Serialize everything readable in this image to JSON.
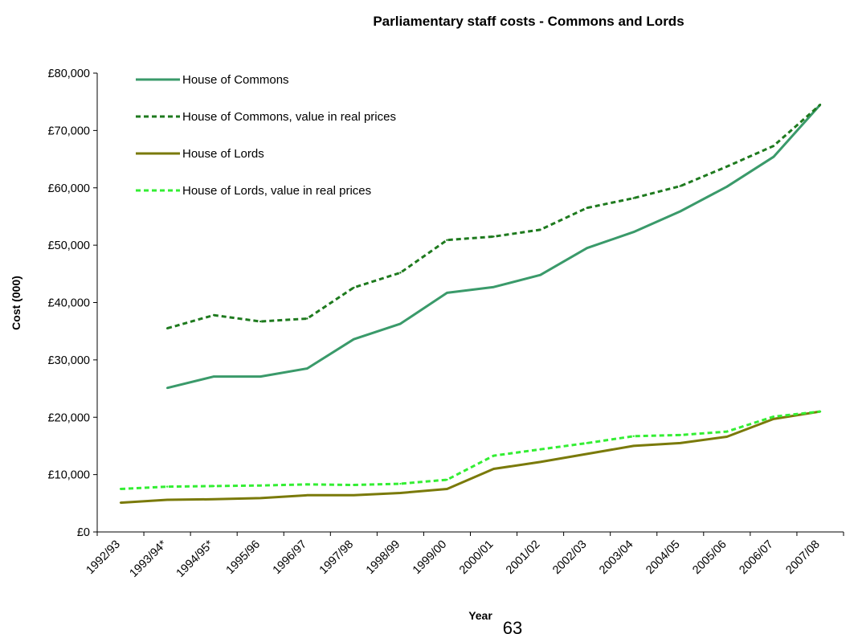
{
  "page_number": "63",
  "chart_data": {
    "type": "line",
    "title": "Parliamentary staff costs - Commons and Lords",
    "xlabel": "Year",
    "ylabel": "Cost (000)",
    "ylim": [
      0,
      80000
    ],
    "ytick_step": 10000,
    "ytick_labels": [
      "£0",
      "£10,000",
      "£20,000",
      "£30,000",
      "£40,000",
      "£50,000",
      "£60,000",
      "£70,000",
      "£80,000"
    ],
    "grid": false,
    "legend_position": "top-left, inside plot",
    "categories": [
      "1992/93",
      "1993/94*",
      "1994/95*",
      "1995/96",
      "1996/97",
      "1997/98",
      "1998/99",
      "1999/00",
      "2000/01",
      "2001/02",
      "2002/03",
      "2003/04",
      "2004/05",
      "2005/06",
      "2006/07",
      "2007/08"
    ],
    "series": [
      {
        "name": "House of Commons",
        "color": "#3a9a6a",
        "style": "solid",
        "values": [
          null,
          25100,
          27100,
          27100,
          28500,
          33600,
          36300,
          41700,
          42700,
          44800,
          49500,
          52300,
          55900,
          60200,
          65400,
          74500
        ]
      },
      {
        "name": "House of Commons, value in real prices",
        "color": "#1e7a1e",
        "style": "dashed",
        "values": [
          null,
          35500,
          37800,
          36700,
          37200,
          42600,
          45200,
          50900,
          51500,
          52700,
          56500,
          58200,
          60300,
          63700,
          67300,
          74500
        ]
      },
      {
        "name": "House of Lords",
        "color": "#7a7a0a",
        "style": "solid",
        "values": [
          5100,
          5600,
          5700,
          5900,
          6400,
          6400,
          6800,
          7500,
          11000,
          12200,
          13600,
          15000,
          15500,
          16600,
          19700,
          21000
        ]
      },
      {
        "name": "House of Lords, value in real prices",
        "color": "#33ee33",
        "style": "dashed",
        "values": [
          7500,
          7900,
          8000,
          8100,
          8300,
          8200,
          8400,
          9100,
          13300,
          14400,
          15500,
          16700,
          16900,
          17500,
          20100,
          21000
        ]
      }
    ]
  }
}
